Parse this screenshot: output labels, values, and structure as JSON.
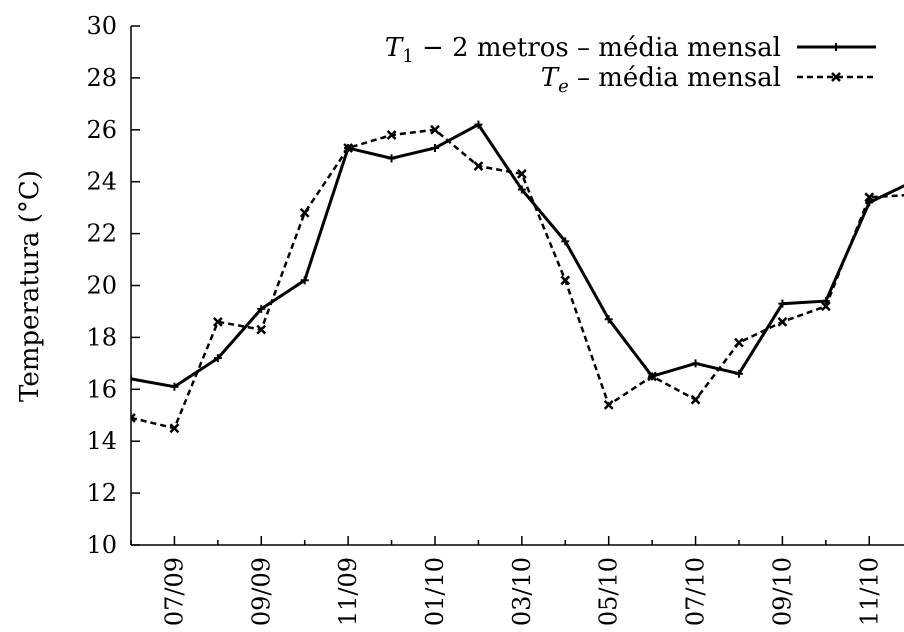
{
  "chart_data": {
    "type": "line",
    "ylabel": "Temperatura (°C)",
    "ylim": [
      10,
      30
    ],
    "yticks": [
      10,
      12,
      14,
      16,
      18,
      20,
      22,
      24,
      26,
      28,
      30
    ],
    "x_tick_labels": [
      "07/09",
      "09/09",
      "11/09",
      "01/10",
      "03/10",
      "05/10",
      "07/10",
      "09/10",
      "11/10"
    ],
    "x_tick_months": [
      1,
      3,
      5,
      7,
      9,
      11,
      13,
      15,
      17
    ],
    "xlim": [
      0,
      17.8
    ],
    "grid": false,
    "legend_position": "top-right",
    "series": [
      {
        "name": "T1 − 2 metros – média mensal",
        "legend": {
          "var": "T",
          "sub": "1",
          "text": " − 2 metros – média mensal"
        },
        "style": "solid",
        "marker": "plus",
        "x": [
          0,
          1,
          2,
          3,
          4,
          5,
          6,
          7,
          8,
          9,
          10,
          11,
          12,
          13,
          14,
          15,
          16,
          17,
          18
        ],
        "values": [
          16.4,
          16.1,
          17.2,
          19.1,
          20.2,
          25.3,
          24.9,
          25.3,
          26.2,
          23.7,
          21.7,
          18.7,
          16.5,
          17.0,
          16.6,
          19.3,
          19.4,
          23.2,
          24.0
        ]
      },
      {
        "name": "Te – média mensal",
        "legend": {
          "var": "T",
          "sub": "e",
          "text": " – média mensal"
        },
        "style": "dashed",
        "marker": "cross",
        "x": [
          0,
          1,
          2,
          3,
          4,
          5,
          6,
          7,
          8,
          9,
          10,
          11,
          12,
          13,
          14,
          15,
          16,
          17,
          18
        ],
        "values": [
          14.9,
          14.5,
          18.6,
          18.3,
          22.8,
          25.3,
          25.8,
          26.0,
          24.6,
          24.3,
          20.2,
          15.4,
          16.5,
          15.6,
          17.8,
          18.6,
          19.2,
          23.4,
          23.5
        ]
      }
    ]
  }
}
